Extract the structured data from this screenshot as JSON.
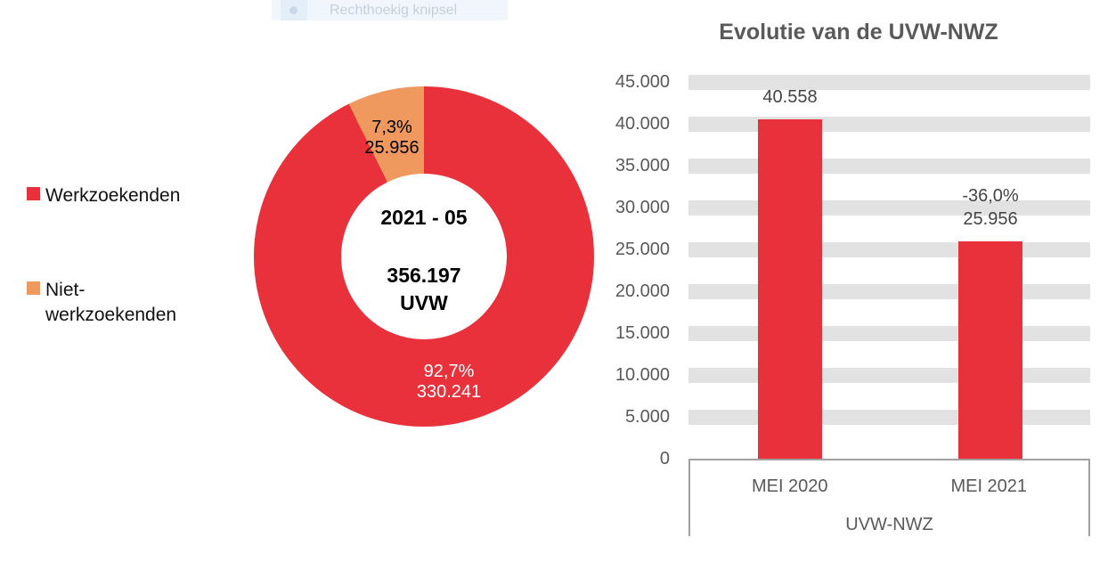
{
  "snip_tooltip": {
    "label": "Rechthoekig knipsel"
  },
  "colors": {
    "series_red": "#e8313a",
    "series_orange": "#f0995f",
    "gridline": "#e2e2e2",
    "axis_text": "#595959",
    "data_label_text": "#444444",
    "axis_box_border": "#a0a0a0",
    "title_text": "#595959"
  },
  "chart_data": [
    {
      "type": "pie",
      "subtype": "donut",
      "title": "",
      "center_label": {
        "period": "2021 - 05",
        "total": "356.197",
        "unit": "UVW"
      },
      "total": 356197,
      "slices": [
        {
          "name": "Werkzoekenden",
          "value": 330241,
          "value_label": "330.241",
          "pct": 92.7,
          "pct_label": "92,7%",
          "color": "#e8313a"
        },
        {
          "name": "Niet-werkzoekenden",
          "value": 25956,
          "value_label": "25.956",
          "pct": 7.3,
          "pct_label": "7,3%",
          "color": "#f0995f"
        }
      ],
      "legend_position": "left",
      "slice_start": "top, counterclockwise minor slice ending at 12 o'clock"
    },
    {
      "type": "bar",
      "title": "Evolutie van de UVW-NWZ",
      "categories": [
        "MEI 2020",
        "MEI 2021"
      ],
      "group_label": "UVW-NWZ",
      "values": [
        40558,
        25956
      ],
      "bar_labels": [
        [
          "40.558"
        ],
        [
          "-36,0%",
          "25.956"
        ]
      ],
      "ylim": [
        0,
        45000
      ],
      "ytick_step": 5000,
      "yticks": [
        "45.000",
        "40.000",
        "35.000",
        "30.000",
        "25.000",
        "20.000",
        "15.000",
        "10.000",
        "5.000",
        "0"
      ],
      "bar_color": "#e8313a",
      "grid": "horizontal-bands",
      "legend": "none"
    }
  ]
}
